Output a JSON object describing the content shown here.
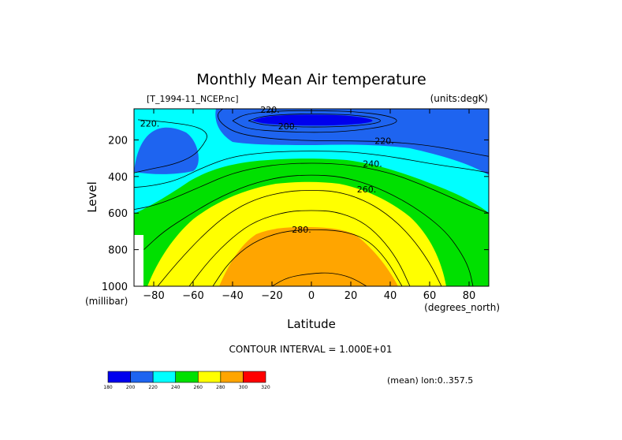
{
  "chart_data": {
    "type": "contour",
    "title": "Monthly Mean Air temperature",
    "source_label": "[T_1994-11_NCEP.nc]",
    "units_label": "(units:degK)",
    "xlabel": "Latitude",
    "x_units": "(degrees_north)",
    "ylabel": "Level",
    "y_units": "(millibar)",
    "xlim": [
      -90,
      90
    ],
    "ylim": [
      1000,
      30
    ],
    "x_ticks": [
      -80,
      -60,
      -40,
      -20,
      0,
      20,
      40,
      60,
      80
    ],
    "y_ticks": [
      200,
      400,
      600,
      800,
      1000
    ],
    "contour_interval_text": "CONTOUR INTERVAL = 1.000E+01",
    "mean_note": "(mean) lon:0..357.5",
    "contour_labels": [
      {
        "text": "220.",
        "lat": -21,
        "level": 35
      },
      {
        "text": "220.",
        "lat": -82,
        "level": 110
      },
      {
        "text": "200.",
        "lat": -12,
        "level": 125
      },
      {
        "text": "220.",
        "lat": 37,
        "level": 205
      },
      {
        "text": "240.",
        "lat": 31,
        "level": 330
      },
      {
        "text": "260.",
        "lat": 28,
        "level": 470
      },
      {
        "text": "280.",
        "lat": -5,
        "level": 690
      }
    ],
    "contour_lines": [
      {
        "value": 200,
        "points": [
          [
            -32,
            95
          ],
          [
            -25,
            70
          ],
          [
            -10,
            58
          ],
          [
            5,
            58
          ],
          [
            20,
            62
          ],
          [
            32,
            78
          ],
          [
            36,
            95
          ],
          [
            32,
            112
          ],
          [
            20,
            125
          ],
          [
            5,
            130
          ],
          [
            -10,
            128
          ],
          [
            -25,
            118
          ],
          [
            -32,
            95
          ]
        ]
      },
      {
        "value": 210,
        "points": [
          [
            -40,
            95
          ],
          [
            -33,
            55
          ],
          [
            -15,
            40
          ],
          [
            5,
            40
          ],
          [
            22,
            45
          ],
          [
            38,
            65
          ],
          [
            45,
            95
          ],
          [
            38,
            125
          ],
          [
            22,
            150
          ],
          [
            5,
            160
          ],
          [
            -15,
            155
          ],
          [
            -33,
            140
          ],
          [
            -40,
            95
          ]
        ]
      },
      {
        "value": 220,
        "points": [
          [
            -90,
            380
          ],
          [
            -82,
            360
          ],
          [
            -70,
            335
          ],
          [
            -60,
            290
          ],
          [
            -55,
            230
          ],
          [
            -52,
            170
          ],
          [
            -58,
            125
          ],
          [
            -75,
            100
          ],
          [
            -88,
            90
          ]
        ]
      },
      {
        "value": 220,
        "points": [
          [
            -45,
            30
          ],
          [
            -48,
            60
          ],
          [
            -46,
            110
          ],
          [
            -38,
            165
          ],
          [
            -20,
            195
          ],
          [
            0,
            205
          ],
          [
            20,
            205
          ],
          [
            40,
            210
          ],
          [
            60,
            230
          ],
          [
            80,
            270
          ],
          [
            90,
            290
          ]
        ]
      },
      {
        "value": 230,
        "points": [
          [
            -90,
            460
          ],
          [
            -80,
            450
          ],
          [
            -68,
            420
          ],
          [
            -55,
            350
          ],
          [
            -40,
            290
          ],
          [
            -20,
            265
          ],
          [
            0,
            260
          ],
          [
            20,
            265
          ],
          [
            40,
            290
          ],
          [
            60,
            330
          ],
          [
            80,
            360
          ],
          [
            90,
            380
          ]
        ]
      },
      {
        "value": 240,
        "points": [
          [
            -90,
            580
          ],
          [
            -80,
            560
          ],
          [
            -70,
            520
          ],
          [
            -55,
            450
          ],
          [
            -40,
            380
          ],
          [
            -20,
            335
          ],
          [
            0,
            325
          ],
          [
            20,
            335
          ],
          [
            40,
            380
          ],
          [
            55,
            440
          ],
          [
            70,
            510
          ],
          [
            80,
            560
          ],
          [
            90,
            600
          ]
        ]
      },
      {
        "value": 250,
        "points": [
          [
            -85,
            800
          ],
          [
            -75,
            700
          ],
          [
            -62,
            610
          ],
          [
            -48,
            520
          ],
          [
            -32,
            445
          ],
          [
            -15,
            400
          ],
          [
            0,
            390
          ],
          [
            15,
            400
          ],
          [
            30,
            445
          ],
          [
            45,
            520
          ],
          [
            58,
            610
          ],
          [
            68,
            700
          ],
          [
            75,
            800
          ],
          [
            80,
            900
          ],
          [
            82,
            1000
          ]
        ]
      },
      {
        "value": 260,
        "points": [
          [
            -78,
            1000
          ],
          [
            -68,
            870
          ],
          [
            -55,
            720
          ],
          [
            -42,
            600
          ],
          [
            -28,
            520
          ],
          [
            -12,
            480
          ],
          [
            0,
            475
          ],
          [
            12,
            480
          ],
          [
            25,
            520
          ],
          [
            38,
            600
          ],
          [
            50,
            720
          ],
          [
            60,
            870
          ],
          [
            66,
            1000
          ]
        ]
      },
      {
        "value": 270,
        "points": [
          [
            -62,
            1000
          ],
          [
            -52,
            860
          ],
          [
            -40,
            730
          ],
          [
            -28,
            640
          ],
          [
            -12,
            590
          ],
          [
            0,
            585
          ],
          [
            12,
            590
          ],
          [
            25,
            640
          ],
          [
            35,
            730
          ],
          [
            44,
            860
          ],
          [
            50,
            1000
          ]
        ]
      },
      {
        "value": 280,
        "points": [
          [
            -50,
            1000
          ],
          [
            -42,
            870
          ],
          [
            -30,
            760
          ],
          [
            -15,
            700
          ],
          [
            0,
            690
          ],
          [
            15,
            695
          ],
          [
            28,
            740
          ],
          [
            38,
            850
          ],
          [
            46,
            1000
          ]
        ]
      },
      {
        "value": 290,
        "points": [
          [
            -20,
            1000
          ],
          [
            -12,
            950
          ],
          [
            0,
            930
          ],
          [
            10,
            925
          ],
          [
            20,
            950
          ],
          [
            28,
            1000
          ]
        ]
      }
    ],
    "fill_bands": [
      {
        "range": "<200",
        "color": "#0000ee",
        "points": [
          [
            -30,
            95
          ],
          [
            -24,
            72
          ],
          [
            -10,
            62
          ],
          [
            5,
            62
          ],
          [
            18,
            66
          ],
          [
            28,
            80
          ],
          [
            32,
            95
          ],
          [
            28,
            108
          ],
          [
            18,
            118
          ],
          [
            5,
            122
          ],
          [
            -10,
            120
          ],
          [
            -24,
            112
          ],
          [
            -30,
            95
          ]
        ]
      }
    ],
    "colorbar": {
      "labels": [
        "180",
        "200",
        "220",
        "240",
        "260",
        "280",
        "300",
        "320"
      ],
      "colors": [
        "#0000ee",
        "#1e64f0",
        "#00ffff",
        "#00e000",
        "#ffff00",
        "#ffa500",
        "#ff0000"
      ]
    },
    "colors": {
      "b180": "#0000ee",
      "b200": "#1e64f0",
      "b220": "#00ffff",
      "b240": "#00e000",
      "b260": "#ffff00",
      "b280": "#ffa500",
      "b300": "#ff0000"
    }
  }
}
